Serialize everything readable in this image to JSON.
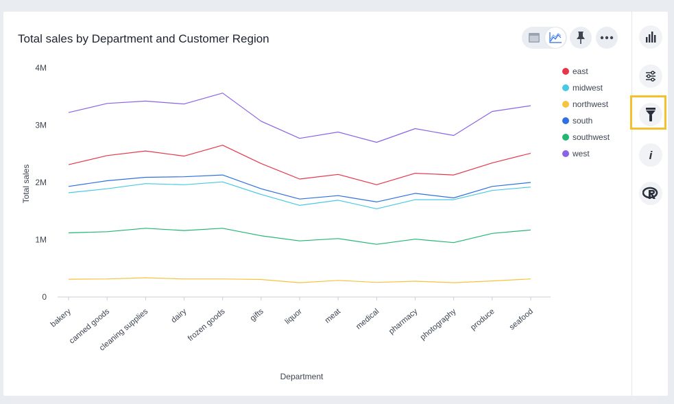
{
  "card": {
    "title": "Total sales by Department and Customer Region"
  },
  "toolbar": {
    "icons": [
      "table-view-icon",
      "line-chart-view-icon",
      "pin-icon",
      "more-options-icon"
    ]
  },
  "side_rail": {
    "icons": [
      "bar-chart-icon",
      "sliders-icon",
      "spotlight-icon",
      "info-icon",
      "r-analysis-icon"
    ],
    "highlight_color": "#f2c12e"
  },
  "chart_data": {
    "type": "line",
    "xlabel": "Department",
    "ylabel": "Total sales",
    "ylim": [
      0,
      4000000
    ],
    "yticks": [
      {
        "value": 0,
        "label": "0"
      },
      {
        "value": 1000000,
        "label": "1M"
      },
      {
        "value": 2000000,
        "label": "2M"
      },
      {
        "value": 3000000,
        "label": "3M"
      },
      {
        "value": 4000000,
        "label": "4M"
      }
    ],
    "grid": false,
    "legend_position": "top-right",
    "categories": [
      "bakery",
      "canned goods",
      "cleaning supplies",
      "dairy",
      "frozen goods",
      "gifts",
      "liquor",
      "meat",
      "medical",
      "pharmacy",
      "photography",
      "produce",
      "seafood"
    ],
    "series": [
      {
        "name": "east",
        "color": "#e5364b",
        "values": [
          2310000,
          2470000,
          2550000,
          2460000,
          2650000,
          2330000,
          2060000,
          2140000,
          1960000,
          2160000,
          2130000,
          2340000,
          2510000
        ]
      },
      {
        "name": "midwest",
        "color": "#48c9e3",
        "values": [
          1820000,
          1890000,
          1980000,
          1960000,
          2010000,
          1790000,
          1600000,
          1690000,
          1540000,
          1700000,
          1700000,
          1860000,
          1920000
        ]
      },
      {
        "name": "northwest",
        "color": "#f6c33c",
        "values": [
          310000,
          315000,
          335000,
          315000,
          315000,
          305000,
          250000,
          290000,
          255000,
          275000,
          250000,
          280000,
          315000
        ]
      },
      {
        "name": "south",
        "color": "#2e6fe3",
        "values": [
          1930000,
          2030000,
          2090000,
          2100000,
          2130000,
          1890000,
          1710000,
          1770000,
          1660000,
          1810000,
          1730000,
          1930000,
          2000000
        ]
      },
      {
        "name": "southwest",
        "color": "#22b573",
        "values": [
          1120000,
          1140000,
          1200000,
          1160000,
          1200000,
          1070000,
          980000,
          1020000,
          920000,
          1010000,
          950000,
          1110000,
          1170000
        ]
      },
      {
        "name": "west",
        "color": "#8c62e6",
        "values": [
          3220000,
          3380000,
          3420000,
          3370000,
          3560000,
          3070000,
          2770000,
          2880000,
          2700000,
          2940000,
          2820000,
          3240000,
          3340000
        ]
      }
    ]
  }
}
